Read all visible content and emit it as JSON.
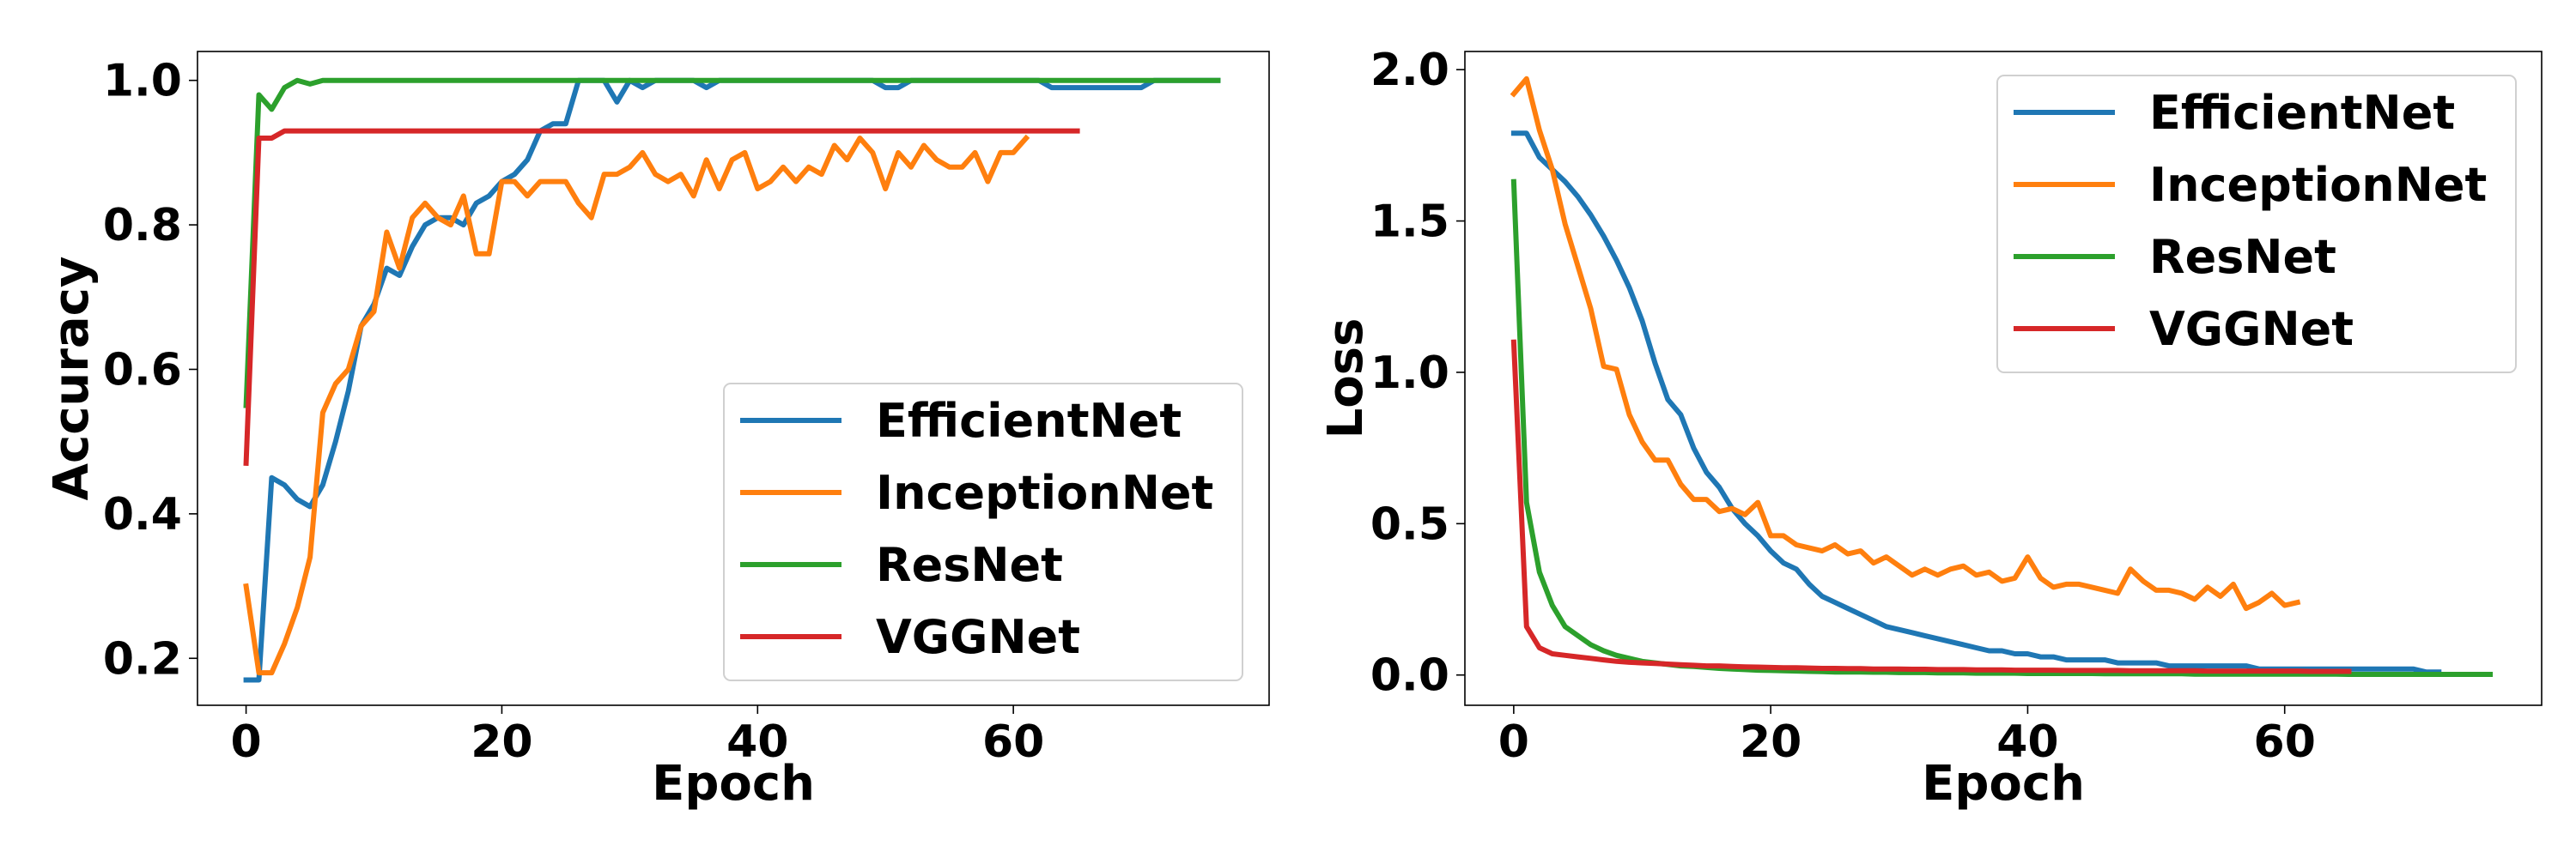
{
  "colors": {
    "EfficientNet": "#1f77b4",
    "InceptionNet": "#ff7f0e",
    "ResNet": "#2ca02c",
    "VGGNet": "#d62728"
  },
  "chart_data": [
    {
      "type": "line",
      "title": "",
      "xlabel": "Epoch",
      "ylabel": "Accuracy",
      "xlim": [
        -3.8,
        80
      ],
      "ylim": [
        0.135,
        1.04
      ],
      "xticks": [
        0,
        20,
        40,
        60
      ],
      "xtick_labels": [
        "0",
        "20",
        "40",
        "60"
      ],
      "yticks": [
        0.2,
        0.4,
        0.6,
        0.8,
        1.0
      ],
      "ytick_labels": [
        "0.2",
        "0.4",
        "0.6",
        "0.8",
        "1.0"
      ],
      "legend": "lower-right",
      "grid": false,
      "series": [
        {
          "name": "EfficientNet",
          "x_start": 0,
          "values": [
            0.17,
            0.17,
            0.45,
            0.44,
            0.42,
            0.41,
            0.44,
            0.5,
            0.57,
            0.66,
            0.69,
            0.74,
            0.73,
            0.77,
            0.8,
            0.81,
            0.81,
            0.8,
            0.83,
            0.84,
            0.86,
            0.87,
            0.89,
            0.93,
            0.94,
            0.94,
            1.0,
            1.0,
            1.0,
            0.97,
            1.0,
            0.99,
            1.0,
            1.0,
            1.0,
            1.0,
            0.99,
            1.0,
            1.0,
            1.0,
            1.0,
            1.0,
            1.0,
            1.0,
            1.0,
            1.0,
            1.0,
            1.0,
            1.0,
            1.0,
            0.99,
            0.99,
            1.0,
            1.0,
            1.0,
            1.0,
            1.0,
            1.0,
            1.0,
            1.0,
            1.0,
            1.0,
            1.0,
            0.99,
            0.99,
            0.99,
            0.99,
            0.99,
            0.99,
            0.99,
            0.99,
            1.0,
            1.0,
            1.0,
            1.0,
            1.0,
            1.0
          ]
        },
        {
          "name": "InceptionNet",
          "x_start": 0,
          "values": [
            0.3,
            0.18,
            0.18,
            0.22,
            0.27,
            0.34,
            0.54,
            0.58,
            0.6,
            0.66,
            0.68,
            0.79,
            0.74,
            0.81,
            0.83,
            0.81,
            0.8,
            0.84,
            0.76,
            0.76,
            0.86,
            0.86,
            0.84,
            0.86,
            0.86,
            0.86,
            0.83,
            0.81,
            0.87,
            0.87,
            0.88,
            0.9,
            0.87,
            0.86,
            0.87,
            0.84,
            0.89,
            0.85,
            0.89,
            0.9,
            0.85,
            0.86,
            0.88,
            0.86,
            0.88,
            0.87,
            0.91,
            0.89,
            0.92,
            0.9,
            0.85,
            0.9,
            0.88,
            0.91,
            0.89,
            0.88,
            0.88,
            0.9,
            0.86,
            0.9,
            0.9,
            0.92
          ]
        },
        {
          "name": "ResNet",
          "x_start": 0,
          "values": [
            0.55,
            0.98,
            0.96,
            0.99,
            1.0,
            0.995,
            1.0,
            1.0,
            1.0,
            1.0,
            1.0,
            1.0,
            1.0,
            1.0,
            1.0,
            1.0,
            1.0,
            1.0,
            1.0,
            1.0,
            1.0,
            1.0,
            1.0,
            1.0,
            1.0,
            1.0,
            1.0,
            1.0,
            1.0,
            1.0,
            1.0,
            1.0,
            1.0,
            1.0,
            1.0,
            1.0,
            1.0,
            1.0,
            1.0,
            1.0,
            1.0,
            1.0,
            1.0,
            1.0,
            1.0,
            1.0,
            1.0,
            1.0,
            1.0,
            1.0,
            1.0,
            1.0,
            1.0,
            1.0,
            1.0,
            1.0,
            1.0,
            1.0,
            1.0,
            1.0,
            1.0,
            1.0,
            1.0,
            1.0,
            1.0,
            1.0,
            1.0,
            1.0,
            1.0,
            1.0,
            1.0,
            1.0,
            1.0,
            1.0,
            1.0,
            1.0,
            1.0
          ]
        },
        {
          "name": "VGGNet",
          "x_start": 0,
          "values": [
            0.47,
            0.92,
            0.92,
            0.93,
            0.93,
            0.93,
            0.93,
            0.93,
            0.93,
            0.93,
            0.93,
            0.93,
            0.93,
            0.93,
            0.93,
            0.93,
            0.93,
            0.93,
            0.93,
            0.93,
            0.93,
            0.93,
            0.93,
            0.93,
            0.93,
            0.93,
            0.93,
            0.93,
            0.93,
            0.93,
            0.93,
            0.93,
            0.93,
            0.93,
            0.93,
            0.93,
            0.93,
            0.93,
            0.93,
            0.93,
            0.93,
            0.93,
            0.93,
            0.93,
            0.93,
            0.93,
            0.93,
            0.93,
            0.93,
            0.93,
            0.93,
            0.93,
            0.93,
            0.93,
            0.93,
            0.93,
            0.93,
            0.93,
            0.93,
            0.93,
            0.93,
            0.93,
            0.93,
            0.93,
            0.93,
            0.93
          ]
        }
      ]
    },
    {
      "type": "line",
      "title": "",
      "xlabel": "Epoch",
      "ylabel": "Loss",
      "xlim": [
        -3.8,
        80
      ],
      "ylim": [
        -0.1,
        2.06
      ],
      "xticks": [
        0,
        20,
        40,
        60
      ],
      "xtick_labels": [
        "0",
        "20",
        "40",
        "60"
      ],
      "yticks": [
        0.0,
        0.5,
        1.0,
        1.5,
        2.0
      ],
      "ytick_labels": [
        "0.0",
        "0.5",
        "1.0",
        "1.5",
        "2.0"
      ],
      "legend": "upper-right",
      "grid": false,
      "series": [
        {
          "name": "EfficientNet",
          "x_start": 0,
          "values": [
            1.79,
            1.79,
            1.71,
            1.67,
            1.63,
            1.58,
            1.52,
            1.45,
            1.37,
            1.28,
            1.17,
            1.03,
            0.91,
            0.86,
            0.75,
            0.67,
            0.62,
            0.55,
            0.5,
            0.46,
            0.41,
            0.37,
            0.35,
            0.3,
            0.26,
            0.24,
            0.22,
            0.2,
            0.18,
            0.16,
            0.15,
            0.14,
            0.13,
            0.12,
            0.11,
            0.1,
            0.09,
            0.08,
            0.08,
            0.07,
            0.07,
            0.06,
            0.06,
            0.05,
            0.05,
            0.05,
            0.05,
            0.04,
            0.04,
            0.04,
            0.04,
            0.03,
            0.03,
            0.03,
            0.03,
            0.03,
            0.03,
            0.03,
            0.02,
            0.02,
            0.02,
            0.02,
            0.02,
            0.02,
            0.02,
            0.02,
            0.02,
            0.02,
            0.02,
            0.02,
            0.02,
            0.01,
            0.01
          ]
        },
        {
          "name": "InceptionNet",
          "x_start": 0,
          "values": [
            1.92,
            1.97,
            1.8,
            1.67,
            1.49,
            1.35,
            1.21,
            1.02,
            1.01,
            0.86,
            0.77,
            0.71,
            0.71,
            0.63,
            0.58,
            0.58,
            0.54,
            0.55,
            0.53,
            0.57,
            0.46,
            0.46,
            0.43,
            0.42,
            0.41,
            0.43,
            0.4,
            0.41,
            0.37,
            0.39,
            0.36,
            0.33,
            0.35,
            0.33,
            0.35,
            0.36,
            0.33,
            0.34,
            0.31,
            0.32,
            0.39,
            0.32,
            0.29,
            0.3,
            0.3,
            0.29,
            0.28,
            0.27,
            0.35,
            0.31,
            0.28,
            0.28,
            0.27,
            0.25,
            0.29,
            0.26,
            0.3,
            0.22,
            0.24,
            0.27,
            0.23,
            0.24
          ]
        },
        {
          "name": "ResNet",
          "x_start": 0,
          "values": [
            1.63,
            0.57,
            0.34,
            0.23,
            0.16,
            0.13,
            0.1,
            0.08,
            0.065,
            0.055,
            0.045,
            0.04,
            0.035,
            0.03,
            0.028,
            0.025,
            0.022,
            0.02,
            0.018,
            0.016,
            0.015,
            0.014,
            0.013,
            0.012,
            0.011,
            0.01,
            0.01,
            0.01,
            0.009,
            0.009,
            0.008,
            0.008,
            0.008,
            0.007,
            0.007,
            0.007,
            0.006,
            0.006,
            0.006,
            0.006,
            0.005,
            0.005,
            0.005,
            0.005,
            0.005,
            0.005,
            0.004,
            0.004,
            0.004,
            0.004,
            0.004,
            0.004,
            0.004,
            0.003,
            0.003,
            0.003,
            0.003,
            0.003,
            0.003,
            0.003,
            0.003,
            0.003,
            0.003,
            0.003,
            0.003,
            0.002,
            0.002,
            0.002,
            0.002,
            0.002,
            0.002,
            0.002,
            0.002,
            0.002,
            0.002,
            0.002,
            0.002
          ]
        },
        {
          "name": "VGGNet",
          "x_start": 0,
          "values": [
            1.1,
            0.16,
            0.09,
            0.07,
            0.065,
            0.06,
            0.055,
            0.05,
            0.045,
            0.042,
            0.04,
            0.038,
            0.036,
            0.034,
            0.032,
            0.03,
            0.03,
            0.028,
            0.027,
            0.026,
            0.025,
            0.024,
            0.024,
            0.023,
            0.022,
            0.022,
            0.021,
            0.021,
            0.02,
            0.02,
            0.02,
            0.019,
            0.019,
            0.018,
            0.018,
            0.018,
            0.017,
            0.017,
            0.017,
            0.016,
            0.016,
            0.016,
            0.016,
            0.015,
            0.015,
            0.015,
            0.015,
            0.015,
            0.014,
            0.014,
            0.014,
            0.014,
            0.014,
            0.014,
            0.013,
            0.013,
            0.013,
            0.013,
            0.013,
            0.013,
            0.013,
            0.013,
            0.012,
            0.012,
            0.012,
            0.012
          ]
        }
      ]
    }
  ]
}
